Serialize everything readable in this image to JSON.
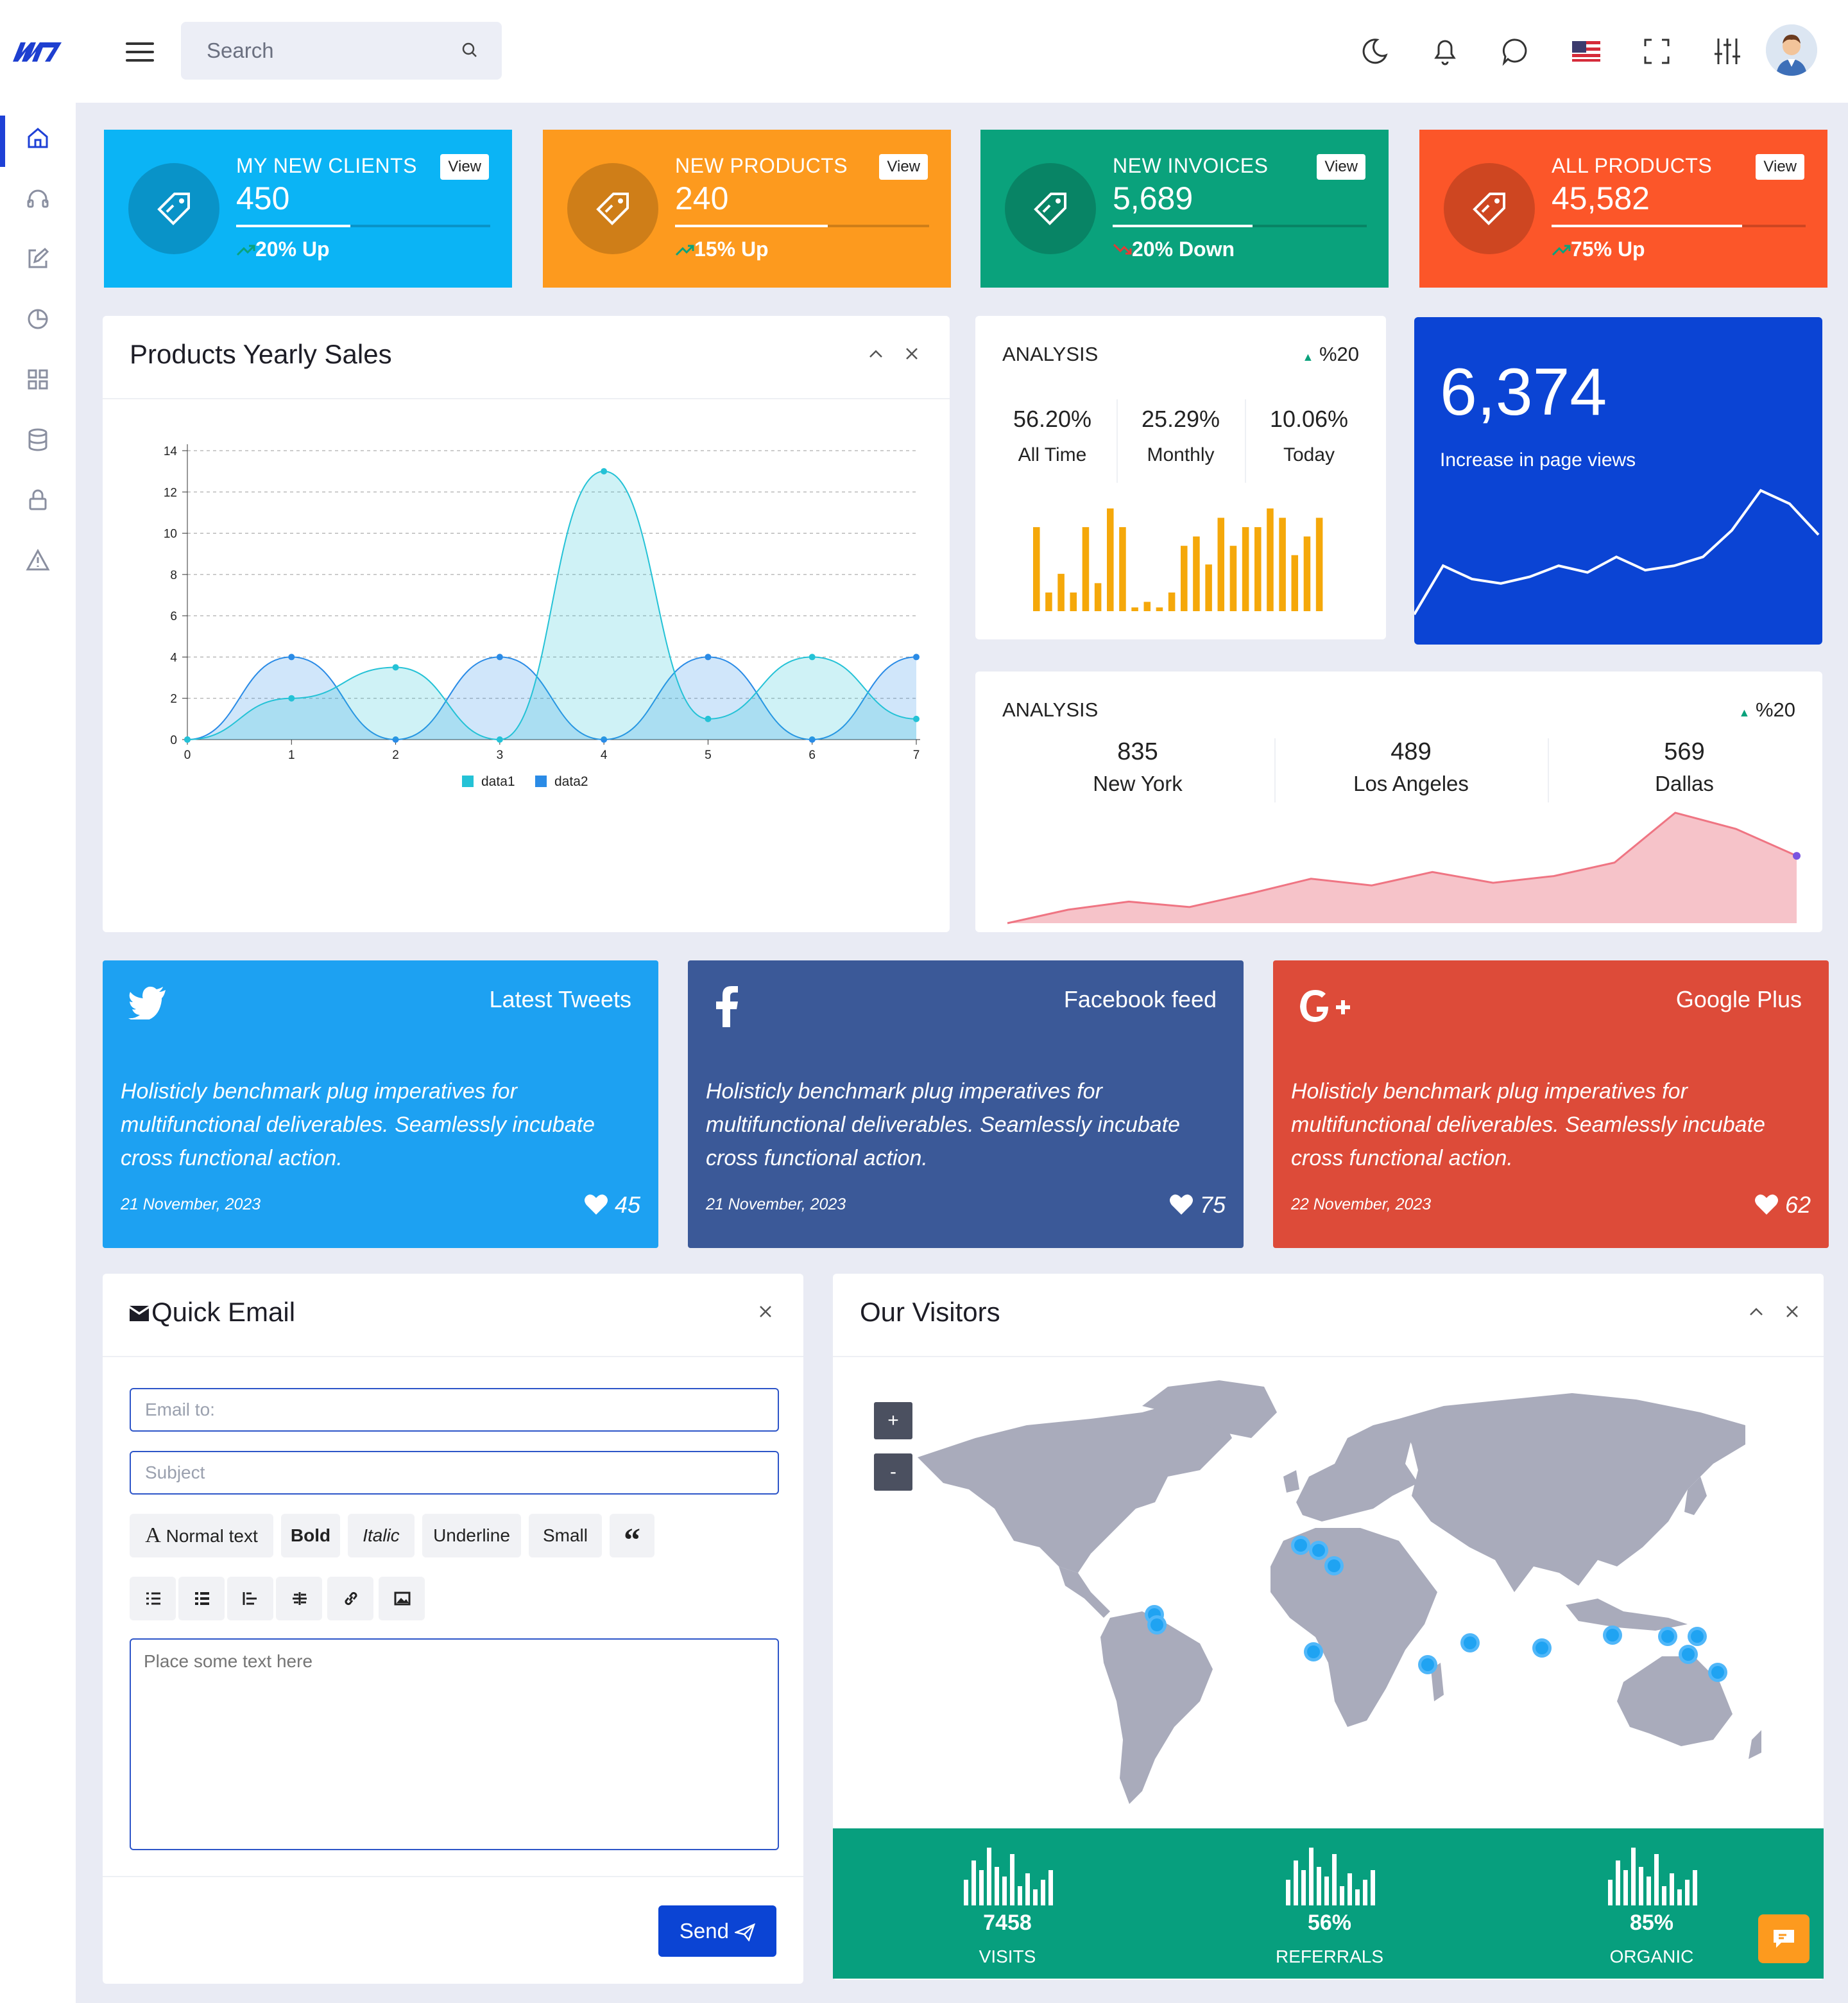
{
  "topbar": {
    "search_placeholder": "Search"
  },
  "stats": [
    {
      "title": "MY NEW CLIENTS",
      "value": "450",
      "change": "20% Up",
      "view": "View",
      "progress": 0.45,
      "color": "#0bb4f5",
      "trend": "up"
    },
    {
      "title": "NEW PRODUCTS",
      "value": "240",
      "change": "15% Up",
      "view": "View",
      "progress": 0.6,
      "color": "#fd9a1e",
      "trend": "up"
    },
    {
      "title": "NEW INVOICES",
      "value": "5,689",
      "change": "20% Down",
      "view": "View",
      "progress": 0.55,
      "color": "#0aa27c",
      "trend": "down"
    },
    {
      "title": "ALL PRODUCTS",
      "value": "45,582",
      "change": "75% Up",
      "view": "View",
      "progress": 0.75,
      "color": "#fc5629",
      "trend": "up"
    }
  ],
  "sales": {
    "title": "Products Yearly Sales",
    "chart_data": {
      "type": "area",
      "x": [
        0,
        1,
        2,
        3,
        4,
        5,
        6,
        7
      ],
      "series": [
        {
          "name": "data1",
          "values": [
            0,
            2,
            3.5,
            0,
            13,
            1,
            4,
            1
          ],
          "color": "#24c2d6"
        },
        {
          "name": "data2",
          "values": [
            0,
            4,
            0,
            4,
            0,
            4,
            0,
            4
          ],
          "color": "#2a8be6"
        }
      ],
      "ylim": [
        0,
        14
      ],
      "yticks": [
        0,
        2,
        4,
        6,
        8,
        10,
        12,
        14
      ],
      "grid": true,
      "legend": "bottom"
    }
  },
  "analysis1": {
    "title": "ANALYSIS",
    "badge": "%20",
    "stats": [
      {
        "value": "56.20%",
        "label": "All Time"
      },
      {
        "value": "25.29%",
        "label": "Monthly"
      },
      {
        "value": "10.06%",
        "label": "Today"
      }
    ],
    "chart_data": {
      "type": "bar",
      "values": [
        9,
        2,
        4,
        2,
        9,
        3,
        11,
        9,
        0.4,
        1,
        0.4,
        2,
        7,
        8,
        5,
        10,
        7,
        9,
        9,
        11,
        10,
        6,
        8,
        10
      ],
      "color": "#f5a80a"
    }
  },
  "pageviews": {
    "value": "6,374",
    "label": "Increase in page views",
    "chart_data": {
      "type": "line",
      "values": [
        2,
        24,
        18,
        16,
        19,
        24,
        21,
        28,
        22,
        24,
        28,
        40,
        58,
        52,
        38
      ]
    }
  },
  "analysis2": {
    "title": "ANALYSIS",
    "badge": "%20",
    "stats": [
      {
        "value": "835",
        "label": "New York"
      },
      {
        "value": "489",
        "label": "Los Angeles"
      },
      {
        "value": "569",
        "label": "Dallas"
      }
    ],
    "chart_data": {
      "type": "area",
      "values": [
        0,
        10,
        16,
        12,
        22,
        33,
        28,
        38,
        30,
        35,
        45,
        82,
        70,
        50
      ],
      "color": "#ef7583"
    }
  },
  "social": [
    {
      "network": "Latest Tweets",
      "text": "Holisticly benchmark plug imperatives for multifunctional deliverables. Seamlessly incubate cross functional action.",
      "date": "21 November, 2023",
      "likes": "45",
      "color": "#1da1f2",
      "icon": "twitter-icon"
    },
    {
      "network": "Facebook feed",
      "text": "Holisticly benchmark plug imperatives for multifunctional deliverables. Seamlessly incubate cross functional action.",
      "date": "21 November, 2023",
      "likes": "75",
      "color": "#3b5998",
      "icon": "facebook-icon"
    },
    {
      "network": "Google Plus",
      "text": "Holisticly benchmark plug imperatives for multifunctional deliverables. Seamlessly incubate cross functional action.",
      "date": "22 November, 2023",
      "likes": "62",
      "color": "#dd4b39",
      "icon": "google-plus-icon"
    }
  ],
  "email": {
    "title": "Quick Email",
    "to_placeholder": "Email to:",
    "subject_placeholder": "Subject",
    "toolbar": [
      "Normal text",
      "Bold",
      "Italic",
      "Underline",
      "Small"
    ],
    "body_placeholder": "Place some text here",
    "send": "Send"
  },
  "visitors": {
    "title": "Our Visitors",
    "zoom_in": "+",
    "zoom_out": "-",
    "stats": [
      {
        "value": "7458",
        "label": "VISITS"
      },
      {
        "value": "56%",
        "label": "REFERRALS"
      },
      {
        "value": "85%",
        "label": "ORGANIC"
      }
    ]
  }
}
